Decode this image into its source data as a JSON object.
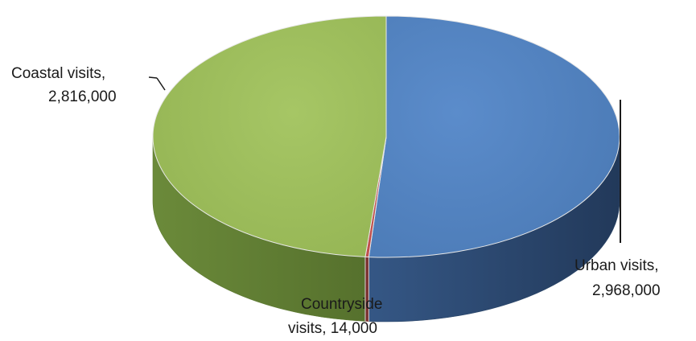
{
  "chart_data": {
    "type": "pie",
    "style": "3d",
    "title": "",
    "legend": "none",
    "slices": [
      {
        "name": "Urban visits",
        "value": 2968000,
        "label_line1": "Urban visits,",
        "label_line2": "2,968,000",
        "color_top": "#4f81bd",
        "color_side": "#2b4668"
      },
      {
        "name": "Countryside visits",
        "value": 14000,
        "label_line1": "Countryside",
        "label_line2": "visits, 14,000",
        "color_top": "#c0504d",
        "color_side": "#7a2f2d"
      },
      {
        "name": "Coastal visits",
        "value": 2816000,
        "label_line1": "Coastal visits,",
        "label_line2": "2,816,000",
        "color_top": "#9bbb59",
        "color_side": "#5e7a33"
      }
    ]
  }
}
